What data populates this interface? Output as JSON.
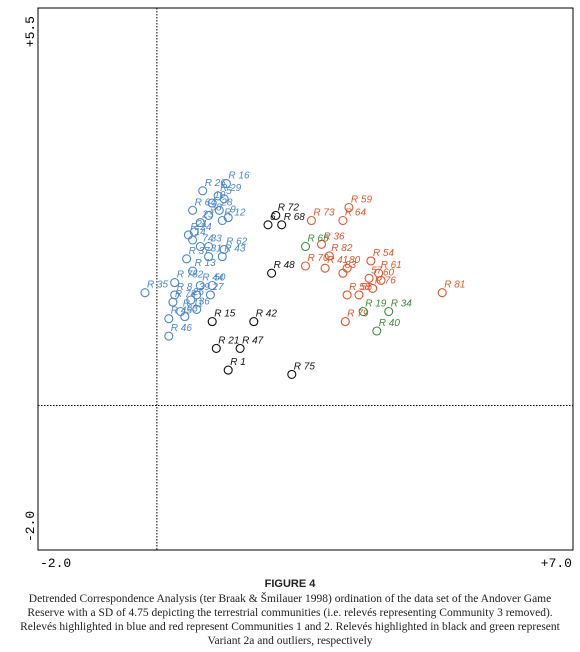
{
  "chart_data": {
    "type": "scatter",
    "axes": {
      "x_min_label": "-2.0",
      "x_max_label": "+7.0",
      "y_max_label": "+5.5",
      "y_min_label": "-2.0"
    },
    "xlim": [
      -2.0,
      7.0
    ],
    "ylim": [
      -2.0,
      5.5
    ],
    "colors": {
      "blue": "#4a86cf",
      "red": "#e2542a",
      "black": "#111111",
      "green": "#3a8a3a"
    },
    "points": [
      {
        "label": "R 16",
        "x": 1.17,
        "y": 3.07,
        "group": "blue"
      },
      {
        "label": "R 26",
        "x": 0.77,
        "y": 2.97,
        "group": "blue"
      },
      {
        "label": "R 29",
        "x": 1.03,
        "y": 2.9,
        "group": "blue"
      },
      {
        "label": "5",
        "x": 1.13,
        "y": 2.86,
        "group": "blue"
      },
      {
        "label": "10",
        "x": 0.93,
        "y": 2.8,
        "group": "blue"
      },
      {
        "label": "R 64",
        "x": 0.6,
        "y": 2.7,
        "group": "blue"
      },
      {
        "label": "28",
        "x": 1.05,
        "y": 2.7,
        "group": "blue"
      },
      {
        "label": "38",
        "x": 0.87,
        "y": 2.63,
        "group": "blue"
      },
      {
        "label": "R 12",
        "x": 1.1,
        "y": 2.56,
        "group": "blue"
      },
      {
        "label": "9",
        "x": 1.2,
        "y": 2.6,
        "group": "blue"
      },
      {
        "label": "23",
        "x": 0.73,
        "y": 2.53,
        "group": "blue"
      },
      {
        "label": "R 24",
        "x": 0.53,
        "y": 2.36,
        "group": "blue"
      },
      {
        "label": "21",
        "x": 0.63,
        "y": 2.4,
        "group": "blue"
      },
      {
        "label": "14",
        "x": 0.6,
        "y": 2.29,
        "group": "blue"
      },
      {
        "label": "74",
        "x": 0.73,
        "y": 2.2,
        "group": "blue"
      },
      {
        "label": "33",
        "x": 0.87,
        "y": 2.2,
        "group": "blue"
      },
      {
        "label": "R 62",
        "x": 1.13,
        "y": 2.16,
        "group": "blue"
      },
      {
        "label": "R 37",
        "x": 0.5,
        "y": 2.03,
        "group": "blue"
      },
      {
        "label": "31",
        "x": 0.87,
        "y": 2.06,
        "group": "blue"
      },
      {
        "label": "R 43",
        "x": 1.1,
        "y": 2.06,
        "group": "blue"
      },
      {
        "label": "R 13",
        "x": 0.6,
        "y": 1.86,
        "group": "blue"
      },
      {
        "label": "R 752",
        "x": 0.3,
        "y": 1.7,
        "group": "blue"
      },
      {
        "label": "R 44",
        "x": 0.73,
        "y": 1.66,
        "group": "blue"
      },
      {
        "label": "50",
        "x": 0.93,
        "y": 1.66,
        "group": "blue"
      },
      {
        "label": "R 8",
        "x": 0.3,
        "y": 1.53,
        "group": "blue"
      },
      {
        "label": "39",
        "x": 0.67,
        "y": 1.53,
        "group": "blue"
      },
      {
        "label": "27",
        "x": 0.9,
        "y": 1.53,
        "group": "blue"
      },
      {
        "label": "25",
        "x": 0.57,
        "y": 1.46,
        "group": "blue"
      },
      {
        "label": "R 78",
        "x": 0.27,
        "y": 1.43,
        "group": "blue"
      },
      {
        "label": "36",
        "x": 0.67,
        "y": 1.33,
        "group": "blue"
      },
      {
        "label": "R 11",
        "x": 0.4,
        "y": 1.3,
        "group": "blue"
      },
      {
        "label": "63",
        "x": 0.47,
        "y": 1.23,
        "group": "blue"
      },
      {
        "label": "R 45",
        "x": 0.2,
        "y": 1.2,
        "group": "blue"
      },
      {
        "label": "R 46",
        "x": 0.2,
        "y": 0.96,
        "group": "blue"
      },
      {
        "label": "R 35",
        "x": -0.2,
        "y": 1.56,
        "group": "blue"
      },
      {
        "label": "R 59",
        "x": 3.23,
        "y": 2.74,
        "group": "red"
      },
      {
        "label": "R 64",
        "x": 3.13,
        "y": 2.56,
        "group": "red"
      },
      {
        "label": "R 73",
        "x": 2.6,
        "y": 2.56,
        "group": "red"
      },
      {
        "label": "R 36",
        "x": 2.77,
        "y": 2.23,
        "group": "red"
      },
      {
        "label": "R 82",
        "x": 2.9,
        "y": 2.07,
        "group": "red"
      },
      {
        "label": "R 70",
        "x": 2.5,
        "y": 1.93,
        "group": "red"
      },
      {
        "label": "R 41",
        "x": 2.83,
        "y": 1.9,
        "group": "red"
      },
      {
        "label": "80",
        "x": 3.2,
        "y": 1.9,
        "group": "red"
      },
      {
        "label": "R 54",
        "x": 3.6,
        "y": 2.0,
        "group": "red"
      },
      {
        "label": "83",
        "x": 3.13,
        "y": 1.83,
        "group": "red"
      },
      {
        "label": "R 61",
        "x": 3.73,
        "y": 1.83,
        "group": "red"
      },
      {
        "label": "57",
        "x": 3.57,
        "y": 1.76,
        "group": "red"
      },
      {
        "label": "60",
        "x": 3.77,
        "y": 1.73,
        "group": "red"
      },
      {
        "label": "R 76",
        "x": 3.63,
        "y": 1.62,
        "group": "red"
      },
      {
        "label": "R 58",
        "x": 3.2,
        "y": 1.53,
        "group": "red"
      },
      {
        "label": "55",
        "x": 3.4,
        "y": 1.53,
        "group": "red"
      },
      {
        "label": "R 81",
        "x": 4.8,
        "y": 1.56,
        "group": "red"
      },
      {
        "label": "R 79",
        "x": 3.17,
        "y": 1.16,
        "group": "red"
      },
      {
        "label": "R 72",
        "x": 2.0,
        "y": 2.63,
        "group": "black"
      },
      {
        "label": "R 68",
        "x": 2.1,
        "y": 2.5,
        "group": "black"
      },
      {
        "label": "6",
        "x": 1.87,
        "y": 2.5,
        "group": "black"
      },
      {
        "label": "R 48",
        "x": 1.93,
        "y": 1.83,
        "group": "black"
      },
      {
        "label": "R 15",
        "x": 0.93,
        "y": 1.16,
        "group": "black"
      },
      {
        "label": "R 42",
        "x": 1.63,
        "y": 1.16,
        "group": "black"
      },
      {
        "label": "R 21",
        "x": 1.0,
        "y": 0.79,
        "group": "black"
      },
      {
        "label": "R 47",
        "x": 1.4,
        "y": 0.79,
        "group": "black"
      },
      {
        "label": "R 1",
        "x": 1.2,
        "y": 0.49,
        "group": "black"
      },
      {
        "label": "R 75",
        "x": 2.27,
        "y": 0.43,
        "group": "black"
      },
      {
        "label": "R 65",
        "x": 2.5,
        "y": 2.2,
        "group": "green"
      },
      {
        "label": "R 19",
        "x": 3.47,
        "y": 1.3,
        "group": "green"
      },
      {
        "label": "R 34",
        "x": 3.9,
        "y": 1.3,
        "group": "green"
      },
      {
        "label": "R 40",
        "x": 3.7,
        "y": 1.03,
        "group": "green"
      }
    ]
  },
  "caption": {
    "figure_label": "FIGURE 4",
    "text": "Detrended Correspondence Analysis (ter Braak & Šmilauer 1998) ordination of the data set of the Andover Game Reserve with a SD of 4.75 depicting the terrestrial communities (i.e. relevés representing Community 3 removed). Relevés highlighted in blue and red represent Communities 1 and 2. Relevés highlighted in black and green represent Variant 2a and outliers, respectively"
  }
}
